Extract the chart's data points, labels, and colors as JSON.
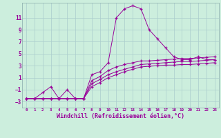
{
  "xlabel": "Windchill (Refroidissement éolien,°C)",
  "xlabel_fontsize": 6.0,
  "bg_color": "#cceedd",
  "grid_color": "#aacccc",
  "line_color": "#990099",
  "xlim": [
    -0.5,
    23.5
  ],
  "ylim": [
    -4.0,
    13.5
  ],
  "yticks": [
    -3,
    -1,
    1,
    3,
    5,
    7,
    9,
    11
  ],
  "xticks": [
    0,
    1,
    2,
    3,
    4,
    5,
    6,
    7,
    8,
    9,
    10,
    11,
    12,
    13,
    14,
    15,
    16,
    17,
    18,
    19,
    20,
    21,
    22,
    23
  ],
  "line1_x": [
    0,
    1,
    2,
    3,
    4,
    5,
    6,
    7,
    8,
    9,
    10,
    11,
    12,
    13,
    14,
    15,
    16,
    17,
    18,
    19,
    20,
    21,
    22,
    23
  ],
  "line1_y": [
    -2.5,
    -2.5,
    -1.5,
    -0.5,
    -2.5,
    -1.0,
    -2.5,
    -2.5,
    1.5,
    2.0,
    3.5,
    11.0,
    12.5,
    13.0,
    12.5,
    9.0,
    7.5,
    6.0,
    4.5,
    4.0,
    4.0,
    4.5,
    4.0,
    4.0
  ],
  "line2_x": [
    0,
    1,
    2,
    3,
    4,
    5,
    6,
    7,
    8,
    9,
    10,
    11,
    12,
    13,
    14,
    15,
    16,
    17,
    18,
    19,
    20,
    21,
    22,
    23
  ],
  "line2_y": [
    -2.5,
    -2.5,
    -2.5,
    -2.5,
    -2.5,
    -2.5,
    -2.5,
    -2.5,
    0.5,
    1.2,
    2.2,
    2.8,
    3.2,
    3.5,
    3.8,
    3.8,
    3.9,
    4.0,
    4.1,
    4.2,
    4.2,
    4.3,
    4.4,
    4.5
  ],
  "line3_x": [
    0,
    1,
    2,
    3,
    4,
    5,
    6,
    7,
    8,
    9,
    10,
    11,
    12,
    13,
    14,
    15,
    16,
    17,
    18,
    19,
    20,
    21,
    22,
    23
  ],
  "line3_y": [
    -2.5,
    -2.5,
    -2.5,
    -2.5,
    -2.5,
    -2.5,
    -2.5,
    -2.5,
    0.0,
    0.7,
    1.5,
    2.0,
    2.4,
    2.8,
    3.2,
    3.3,
    3.4,
    3.5,
    3.6,
    3.7,
    3.7,
    3.8,
    3.9,
    4.0
  ],
  "line4_x": [
    0,
    1,
    2,
    3,
    4,
    5,
    6,
    7,
    8,
    9,
    10,
    11,
    12,
    13,
    14,
    15,
    16,
    17,
    18,
    19,
    20,
    21,
    22,
    23
  ],
  "line4_y": [
    -2.5,
    -2.5,
    -2.5,
    -2.5,
    -2.5,
    -2.5,
    -2.5,
    -2.5,
    -0.5,
    0.2,
    1.0,
    1.5,
    2.0,
    2.4,
    2.8,
    2.9,
    3.0,
    3.1,
    3.1,
    3.2,
    3.2,
    3.3,
    3.4,
    3.5
  ]
}
